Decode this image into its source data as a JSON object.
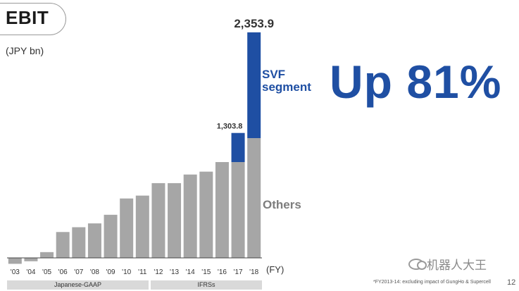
{
  "title": "EBIT",
  "unit_label": "(JPY bn)",
  "headline": "Up 81%",
  "fy_label": "(FY)",
  "segments": {
    "svf": "SVF\nsegment",
    "others": "Others"
  },
  "bands": [
    {
      "label": "Japanese-GAAP"
    },
    {
      "label": "IFRSs"
    }
  ],
  "footnote": "*FY2013-14: excluding impact of GungHo & Supercell",
  "page_number": "12",
  "watermark": "机器人大王",
  "colors": {
    "others": "#a6a6a6",
    "svf": "#1f4fa3",
    "headline": "#1f4fa3"
  },
  "chart_data": {
    "type": "bar",
    "stacked": true,
    "categories": [
      "'03",
      "'04",
      "'05",
      "'06",
      "'07",
      "'08",
      "'09",
      "'10",
      "'11",
      "'12",
      "'13",
      "'14",
      "'15",
      "'16",
      "'17",
      "'18"
    ],
    "series": [
      {
        "name": "Others",
        "values": [
          -62,
          -35,
          60,
          270,
          320,
          360,
          450,
          620,
          650,
          780,
          780,
          870,
          900,
          1000,
          1000,
          1250
        ]
      },
      {
        "name": "SVF segment",
        "values": [
          0,
          0,
          0,
          0,
          0,
          0,
          0,
          0,
          0,
          0,
          0,
          0,
          0,
          0,
          303.8,
          1103.9
        ]
      }
    ],
    "annotations": [
      {
        "category": "'17",
        "text": "1,303.8"
      },
      {
        "category": "'18",
        "text": "2,353.9"
      }
    ],
    "xlabel": "(FY)",
    "ylabel": "(JPY bn)",
    "ylim": [
      -100,
      2400
    ],
    "grid": false
  }
}
